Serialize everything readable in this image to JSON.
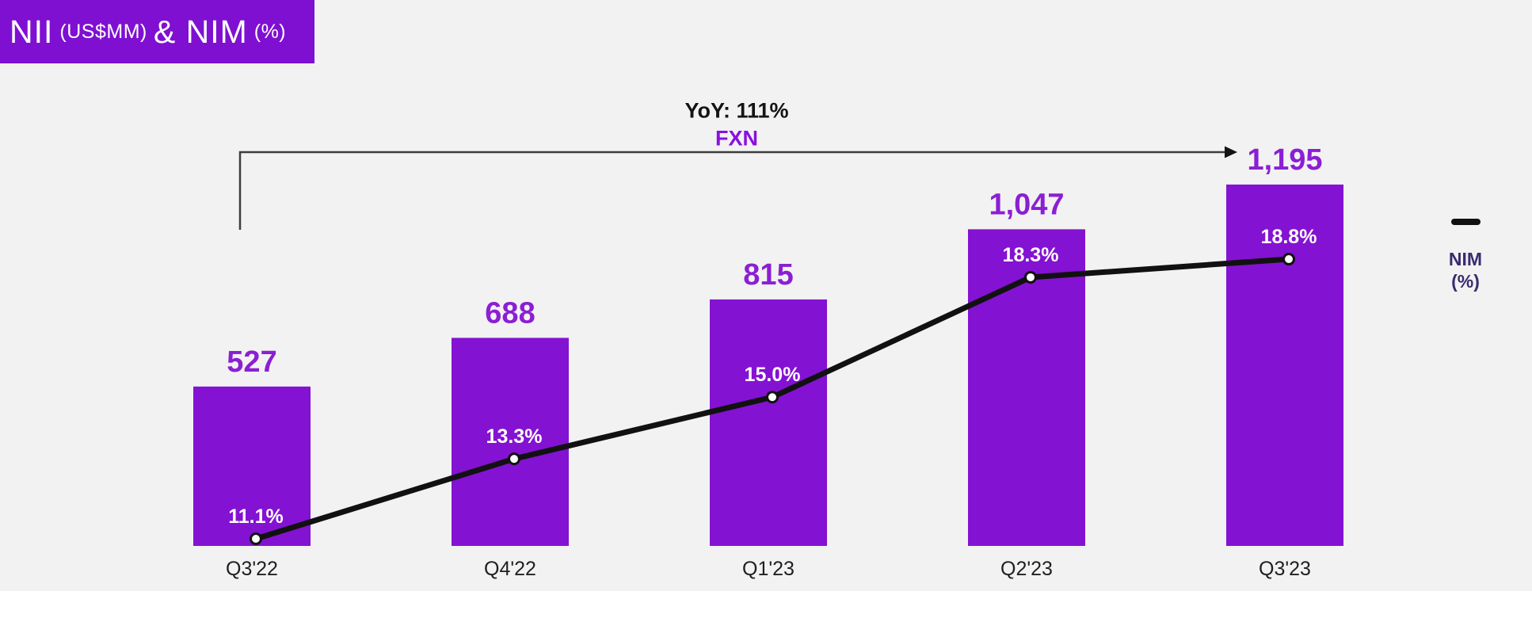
{
  "title": {
    "part1": "NII",
    "part1_sub": "(US$MM)",
    "part2": "& NIM",
    "part2_sub": "(%)"
  },
  "annotation": {
    "yoy_label": "YoY: 111%",
    "fx_label": "FXN"
  },
  "legend": {
    "line1": "NIM",
    "line2": "(%)"
  },
  "colors": {
    "panel_bg": "#f2f2f2",
    "title_box_bg": "#7f10d2",
    "bar_fill": "#8412d2",
    "value_label": "#8b1fd3",
    "pct_label": "#ffffff",
    "line_stroke": "#111111",
    "marker_fill": "#ffffff",
    "axis_label": "#1f1f1f",
    "fx_label": "#8a0fe0",
    "arrow": "#3d3d3d"
  },
  "chart_data": {
    "type": "combo",
    "title": "NII (US$MM) & NIM (%)",
    "categories": [
      "Q3'22",
      "Q4'22",
      "Q1'23",
      "Q2'23",
      "Q3'23"
    ],
    "series": [
      {
        "name": "NII (US$MM)",
        "type": "bar",
        "values": [
          527,
          688,
          815,
          1047,
          1195
        ],
        "labels": [
          "527",
          "688",
          "815",
          "1,047",
          "1,195"
        ]
      },
      {
        "name": "NIM (%)",
        "type": "line",
        "values": [
          11.1,
          13.3,
          15.0,
          18.3,
          18.8
        ],
        "labels": [
          "11.1%",
          "13.3%",
          "15.0%",
          "18.3%",
          "18.8%"
        ]
      }
    ],
    "annotations": [
      {
        "text": "YoY: 111%",
        "style": "bold-black"
      },
      {
        "text": "FXN",
        "style": "bold-purple"
      }
    ],
    "legend_entries": [
      "NIM (%)"
    ],
    "legend_position": "right",
    "grid": false,
    "value_axis_visible": false
  }
}
